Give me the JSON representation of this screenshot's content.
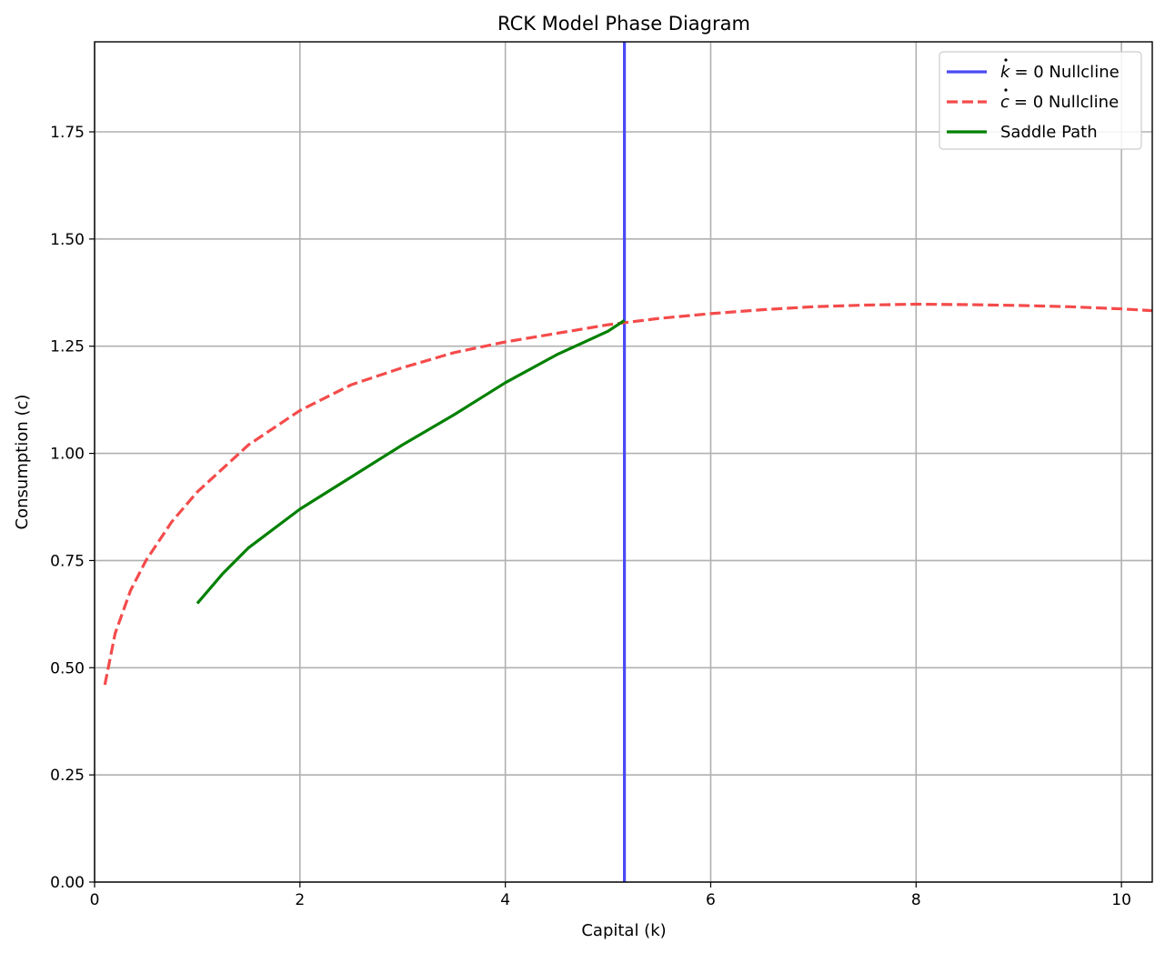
{
  "chart_data": {
    "type": "line",
    "title": "RCK Model Phase Diagram",
    "xlabel": "Capital (k)",
    "ylabel": "Consumption (c)",
    "xlim": [
      0,
      10.3
    ],
    "ylim": [
      0,
      1.96
    ],
    "xticks": [
      0,
      2,
      4,
      6,
      8,
      10
    ],
    "yticks": [
      0.0,
      0.25,
      0.5,
      0.75,
      1.0,
      1.25,
      1.5,
      1.75
    ],
    "xtick_labels": [
      "0",
      "2",
      "4",
      "6",
      "8",
      "10"
    ],
    "ytick_labels": [
      "0.00",
      "0.25",
      "0.50",
      "0.75",
      "1.00",
      "1.25",
      "1.50",
      "1.75"
    ],
    "grid": true,
    "legend_position": "top-right",
    "series": [
      {
        "name": "k̇ = 0 Nullcline",
        "legend_math": "k",
        "legend_suffix": "= 0 Nullcline",
        "color": "#4a4af5",
        "style": "solid",
        "x": [
          5.16,
          5.16
        ],
        "y": [
          0.0,
          1.96
        ]
      },
      {
        "name": "ċ = 0 Nullcline",
        "legend_math": "c",
        "legend_suffix": "= 0 Nullcline",
        "color": "#f44b4b",
        "style": "dashed",
        "x": [
          0.1,
          0.2,
          0.35,
          0.5,
          0.75,
          1.0,
          1.5,
          2.0,
          2.5,
          3.0,
          3.5,
          4.0,
          4.5,
          5.0,
          5.5,
          6.0,
          6.5,
          7.0,
          7.5,
          8.0,
          8.5,
          9.0,
          9.5,
          10.0,
          10.3
        ],
        "y": [
          0.46,
          0.58,
          0.68,
          0.75,
          0.84,
          0.91,
          1.02,
          1.1,
          1.16,
          1.2,
          1.235,
          1.26,
          1.28,
          1.3,
          1.315,
          1.326,
          1.335,
          1.342,
          1.346,
          1.348,
          1.347,
          1.345,
          1.342,
          1.337,
          1.333
        ]
      },
      {
        "name": "Saddle Path",
        "color": "#008000",
        "style": "solid",
        "x": [
          1.0,
          1.25,
          1.5,
          2.0,
          2.5,
          3.0,
          3.5,
          4.0,
          4.5,
          5.0,
          5.16
        ],
        "y": [
          0.65,
          0.72,
          0.78,
          0.87,
          0.945,
          1.02,
          1.09,
          1.165,
          1.23,
          1.285,
          1.31
        ]
      }
    ]
  }
}
